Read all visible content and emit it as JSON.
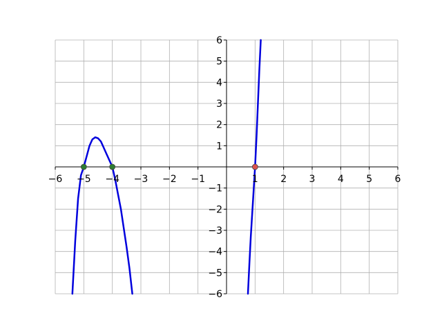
{
  "chart_data": {
    "type": "line",
    "title": "",
    "xlabel": "",
    "ylabel": "",
    "xlim": [
      -6,
      6
    ],
    "ylim": [
      -6,
      6
    ],
    "grid": true,
    "x_ticks": [
      -6,
      -5,
      -4,
      -3,
      -2,
      -1,
      1,
      2,
      3,
      4,
      5,
      6
    ],
    "y_ticks": [
      -6,
      -5,
      -4,
      -3,
      -2,
      -1,
      1,
      2,
      3,
      4,
      5,
      6
    ],
    "x_tick_labels": [
      "−6",
      "−5",
      "−4",
      "−3",
      "−2",
      "−1",
      "1",
      "2",
      "3",
      "4",
      "5",
      "6"
    ],
    "y_tick_labels": [
      "−6",
      "−5",
      "−4",
      "−3",
      "−2",
      "−1",
      "1",
      "2",
      "3",
      "4",
      "5",
      "6"
    ],
    "series": [
      {
        "color": "#0000dd",
        "segments": [
          [
            [
              -5.4,
              -6.0
            ],
            [
              -5.3,
              -3.5
            ],
            [
              -5.2,
              -1.5
            ],
            [
              -5.1,
              -0.4
            ],
            [
              -5.0,
              0.0
            ],
            [
              -4.9,
              0.5
            ],
            [
              -4.8,
              1.0
            ],
            [
              -4.7,
              1.3
            ],
            [
              -4.6,
              1.4
            ],
            [
              -4.5,
              1.35
            ],
            [
              -4.4,
              1.2
            ],
            [
              -4.3,
              0.9
            ],
            [
              -4.2,
              0.6
            ],
            [
              -4.1,
              0.3
            ],
            [
              -4.0,
              0.0
            ],
            [
              -3.9,
              -0.6
            ],
            [
              -3.8,
              -1.3
            ],
            [
              -3.7,
              -2.0
            ],
            [
              -3.6,
              -2.9
            ],
            [
              -3.5,
              -3.8
            ],
            [
              -3.4,
              -4.8
            ],
            [
              -3.3,
              -6.0
            ]
          ],
          [
            [
              0.75,
              -6.0
            ],
            [
              0.8,
              -4.6
            ],
            [
              0.85,
              -3.3
            ],
            [
              0.9,
              -2.2
            ],
            [
              0.95,
              -1.1
            ],
            [
              1.0,
              0.0
            ],
            [
              1.05,
              1.4
            ],
            [
              1.1,
              3.0
            ],
            [
              1.15,
              4.6
            ],
            [
              1.2,
              6.0
            ]
          ]
        ]
      }
    ],
    "points": [
      {
        "x": -5,
        "y": 0,
        "color": "#2e7d32"
      },
      {
        "x": -4,
        "y": 0,
        "color": "#2e7d32"
      },
      {
        "x": 1,
        "y": 0,
        "color": "#d9534f"
      }
    ]
  }
}
